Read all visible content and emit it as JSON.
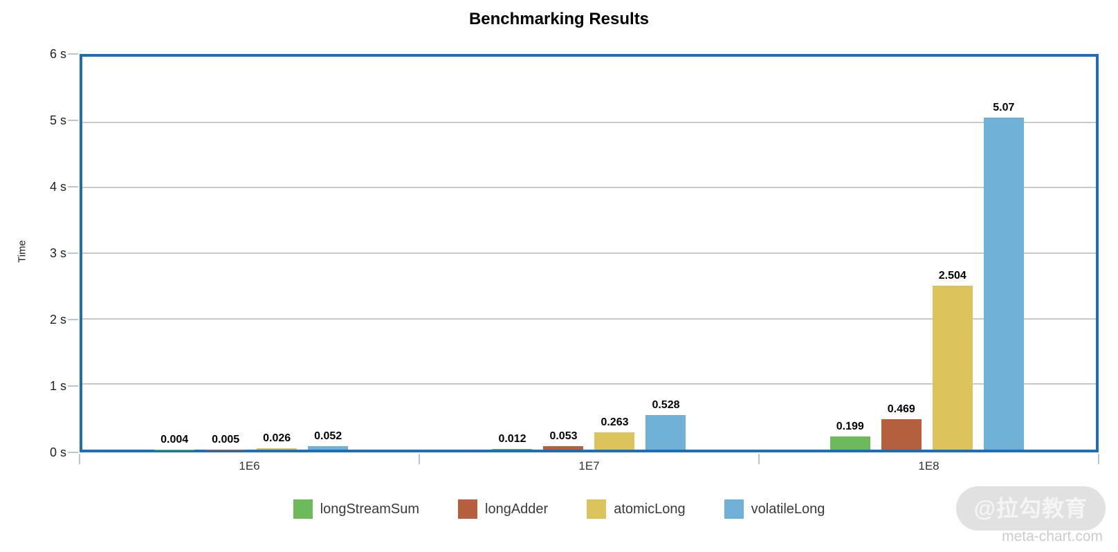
{
  "title": "Benchmarking Results",
  "watermark": {
    "badge": "@拉勾教育",
    "site": "meta-chart.com"
  },
  "chart_data": {
    "type": "bar",
    "title": "Benchmarking Results",
    "xlabel": "",
    "ylabel": "Time",
    "categories": [
      "1E6",
      "1E7",
      "1E8"
    ],
    "series": [
      {
        "name": "longStreamSum",
        "color": "#6dba5c",
        "values": [
          0.004,
          0.012,
          0.199
        ],
        "labels": [
          "0.004",
          "0.012",
          "0.199"
        ]
      },
      {
        "name": "longAdder",
        "color": "#b5603c",
        "values": [
          0.005,
          0.053,
          0.469
        ],
        "labels": [
          "0.005",
          "0.053",
          "0.469"
        ]
      },
      {
        "name": "atomicLong",
        "color": "#dcc35c",
        "values": [
          0.026,
          0.263,
          2.504
        ],
        "labels": [
          "0.026",
          "0.263",
          "2.504"
        ]
      },
      {
        "name": "volatileLong",
        "color": "#6fb1d7",
        "values": [
          0.052,
          0.528,
          5.07
        ],
        "labels": [
          "0.052",
          "0.528",
          "5.07"
        ]
      }
    ],
    "ylim": [
      0,
      6
    ],
    "y_tick_step": 1,
    "y_unit": "s",
    "grid": true,
    "legend_position": "bottom",
    "colors": {
      "plot_border": "#1c6eb7",
      "grid": "#c9c9c9",
      "axis_tick": "#b3c8dc"
    }
  }
}
